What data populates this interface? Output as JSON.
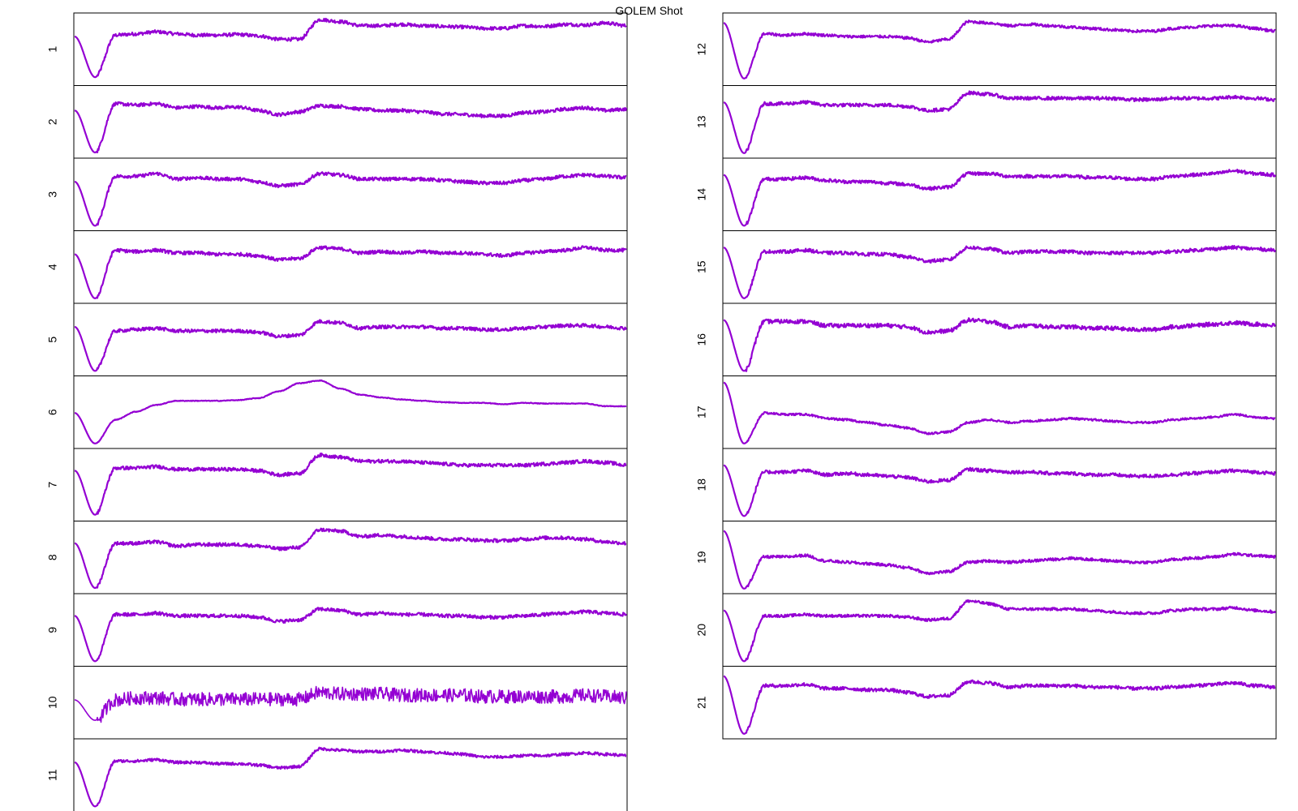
{
  "title": "GOLEM Shot",
  "colors": {
    "trace": "#9400d3",
    "frame": "#000000",
    "text": "#000000"
  },
  "chart_data": {
    "type": "line",
    "title": "GOLEM Shot",
    "columns": 2,
    "panels": [
      {
        "label": "1",
        "column": 1,
        "noise": 0.05,
        "values": [
          0.7,
          0.1,
          0.72,
          0.74,
          0.77,
          0.74,
          0.72,
          0.72,
          0.73,
          0.71,
          0.66,
          0.66,
          0.95,
          0.92,
          0.86,
          0.86,
          0.88,
          0.86,
          0.85,
          0.84,
          0.82,
          0.82,
          0.86,
          0.85,
          0.88,
          0.87,
          0.9,
          0.86
        ]
      },
      {
        "label": "2",
        "column": 1,
        "noise": 0.05,
        "values": [
          0.68,
          0.06,
          0.78,
          0.76,
          0.78,
          0.72,
          0.74,
          0.72,
          0.73,
          0.68,
          0.62,
          0.66,
          0.75,
          0.74,
          0.7,
          0.68,
          0.68,
          0.66,
          0.63,
          0.62,
          0.6,
          0.6,
          0.65,
          0.66,
          0.7,
          0.72,
          0.68,
          0.7
        ]
      },
      {
        "label": "3",
        "column": 1,
        "noise": 0.05,
        "values": [
          0.7,
          0.05,
          0.78,
          0.78,
          0.82,
          0.74,
          0.76,
          0.74,
          0.74,
          0.7,
          0.64,
          0.66,
          0.82,
          0.8,
          0.74,
          0.74,
          0.74,
          0.74,
          0.72,
          0.7,
          0.68,
          0.68,
          0.72,
          0.74,
          0.78,
          0.8,
          0.78,
          0.76
        ]
      },
      {
        "label": "4",
        "column": 1,
        "noise": 0.05,
        "values": [
          0.7,
          0.05,
          0.76,
          0.74,
          0.76,
          0.72,
          0.72,
          0.7,
          0.7,
          0.68,
          0.62,
          0.64,
          0.8,
          0.78,
          0.72,
          0.74,
          0.72,
          0.74,
          0.72,
          0.72,
          0.7,
          0.68,
          0.72,
          0.74,
          0.76,
          0.8,
          0.76,
          0.76
        ]
      },
      {
        "label": "5",
        "column": 1,
        "noise": 0.05,
        "values": [
          0.7,
          0.05,
          0.64,
          0.66,
          0.68,
          0.64,
          0.64,
          0.64,
          0.64,
          0.62,
          0.56,
          0.58,
          0.78,
          0.76,
          0.68,
          0.7,
          0.7,
          0.7,
          0.68,
          0.68,
          0.66,
          0.66,
          0.68,
          0.7,
          0.72,
          0.72,
          0.7,
          0.68
        ]
      },
      {
        "label": "6",
        "column": 1,
        "noise": 0.01,
        "values": [
          0.5,
          0.05,
          0.4,
          0.52,
          0.62,
          0.68,
          0.68,
          0.68,
          0.69,
          0.72,
          0.82,
          0.94,
          0.98,
          0.86,
          0.77,
          0.73,
          0.7,
          0.68,
          0.66,
          0.65,
          0.65,
          0.63,
          0.65,
          0.64,
          0.64,
          0.64,
          0.6,
          0.6
        ]
      },
      {
        "label": "7",
        "column": 1,
        "noise": 0.05,
        "values": [
          0.72,
          0.07,
          0.76,
          0.76,
          0.78,
          0.74,
          0.74,
          0.74,
          0.74,
          0.72,
          0.66,
          0.68,
          0.95,
          0.92,
          0.86,
          0.86,
          0.86,
          0.84,
          0.82,
          0.8,
          0.8,
          0.8,
          0.8,
          0.82,
          0.84,
          0.86,
          0.84,
          0.8
        ]
      },
      {
        "label": "8",
        "column": 1,
        "noise": 0.05,
        "values": [
          0.72,
          0.06,
          0.72,
          0.72,
          0.74,
          0.68,
          0.7,
          0.7,
          0.7,
          0.68,
          0.64,
          0.66,
          0.92,
          0.9,
          0.82,
          0.84,
          0.82,
          0.8,
          0.78,
          0.78,
          0.76,
          0.76,
          0.78,
          0.8,
          0.8,
          0.78,
          0.74,
          0.72
        ]
      },
      {
        "label": "9",
        "column": 1,
        "noise": 0.05,
        "values": [
          0.72,
          0.05,
          0.74,
          0.74,
          0.76,
          0.72,
          0.72,
          0.72,
          0.72,
          0.7,
          0.64,
          0.66,
          0.82,
          0.8,
          0.74,
          0.76,
          0.74,
          0.74,
          0.72,
          0.72,
          0.7,
          0.7,
          0.72,
          0.74,
          0.76,
          0.78,
          0.76,
          0.74
        ]
      },
      {
        "label": "10",
        "column": 1,
        "noise": 0.2,
        "values": [
          0.55,
          0.25,
          0.55,
          0.58,
          0.58,
          0.56,
          0.56,
          0.56,
          0.56,
          0.56,
          0.56,
          0.56,
          0.66,
          0.64,
          0.64,
          0.64,
          0.62,
          0.62,
          0.62,
          0.62,
          0.6,
          0.6,
          0.6,
          0.6,
          0.6,
          0.62,
          0.6,
          0.58
        ]
      },
      {
        "label": "11",
        "column": 1,
        "noise": 0.04,
        "values": [
          0.7,
          0.05,
          0.72,
          0.72,
          0.74,
          0.7,
          0.7,
          0.68,
          0.68,
          0.66,
          0.62,
          0.64,
          0.9,
          0.88,
          0.86,
          0.86,
          0.88,
          0.86,
          0.84,
          0.82,
          0.78,
          0.78,
          0.8,
          0.8,
          0.82,
          0.84,
          0.82,
          0.8
        ]
      },
      {
        "label": "12",
        "column": 2,
        "noise": 0.04,
        "values": [
          0.9,
          0.08,
          0.74,
          0.72,
          0.74,
          0.72,
          0.7,
          0.7,
          0.7,
          0.68,
          0.62,
          0.66,
          0.92,
          0.9,
          0.86,
          0.88,
          0.86,
          0.84,
          0.82,
          0.8,
          0.78,
          0.78,
          0.82,
          0.84,
          0.86,
          0.86,
          0.82,
          0.78
        ]
      },
      {
        "label": "13",
        "column": 2,
        "noise": 0.05,
        "values": [
          0.8,
          0.05,
          0.78,
          0.78,
          0.8,
          0.76,
          0.76,
          0.76,
          0.76,
          0.74,
          0.68,
          0.7,
          0.94,
          0.92,
          0.86,
          0.86,
          0.86,
          0.86,
          0.86,
          0.86,
          0.84,
          0.84,
          0.86,
          0.86,
          0.86,
          0.88,
          0.86,
          0.84
        ]
      },
      {
        "label": "14",
        "column": 2,
        "noise": 0.05,
        "values": [
          0.8,
          0.05,
          0.74,
          0.74,
          0.76,
          0.72,
          0.7,
          0.7,
          0.68,
          0.66,
          0.6,
          0.62,
          0.82,
          0.82,
          0.78,
          0.78,
          0.78,
          0.78,
          0.76,
          0.76,
          0.74,
          0.74,
          0.78,
          0.8,
          0.82,
          0.86,
          0.82,
          0.8
        ]
      },
      {
        "label": "15",
        "column": 2,
        "noise": 0.05,
        "values": [
          0.8,
          0.05,
          0.74,
          0.74,
          0.76,
          0.72,
          0.72,
          0.7,
          0.7,
          0.66,
          0.6,
          0.62,
          0.8,
          0.78,
          0.72,
          0.74,
          0.74,
          0.74,
          0.72,
          0.72,
          0.72,
          0.72,
          0.74,
          0.76,
          0.78,
          0.8,
          0.78,
          0.76
        ]
      },
      {
        "label": "16",
        "column": 2,
        "noise": 0.06,
        "values": [
          0.8,
          0.05,
          0.78,
          0.78,
          0.78,
          0.72,
          0.72,
          0.72,
          0.72,
          0.7,
          0.62,
          0.64,
          0.8,
          0.78,
          0.7,
          0.72,
          0.7,
          0.7,
          0.68,
          0.68,
          0.66,
          0.66,
          0.7,
          0.72,
          0.74,
          0.76,
          0.74,
          0.72
        ]
      },
      {
        "label": "17",
        "column": 2,
        "noise": 0.03,
        "values": [
          0.95,
          0.05,
          0.5,
          0.48,
          0.48,
          0.42,
          0.4,
          0.36,
          0.32,
          0.28,
          0.2,
          0.22,
          0.36,
          0.4,
          0.36,
          0.38,
          0.4,
          0.42,
          0.4,
          0.38,
          0.36,
          0.36,
          0.4,
          0.42,
          0.44,
          0.48,
          0.44,
          0.42
        ]
      },
      {
        "label": "18",
        "column": 2,
        "noise": 0.05,
        "values": [
          0.8,
          0.05,
          0.7,
          0.7,
          0.72,
          0.66,
          0.68,
          0.66,
          0.64,
          0.62,
          0.56,
          0.58,
          0.74,
          0.72,
          0.7,
          0.7,
          0.68,
          0.68,
          0.66,
          0.66,
          0.64,
          0.64,
          0.66,
          0.68,
          0.7,
          0.72,
          0.7,
          0.68
        ]
      },
      {
        "label": "19",
        "column": 2,
        "noise": 0.04,
        "values": [
          0.9,
          0.05,
          0.52,
          0.52,
          0.54,
          0.46,
          0.44,
          0.42,
          0.4,
          0.36,
          0.28,
          0.3,
          0.44,
          0.46,
          0.44,
          0.46,
          0.48,
          0.5,
          0.48,
          0.46,
          0.44,
          0.44,
          0.48,
          0.5,
          0.52,
          0.56,
          0.54,
          0.52
        ]
      },
      {
        "label": "20",
        "column": 2,
        "noise": 0.04,
        "values": [
          0.8,
          0.05,
          0.72,
          0.72,
          0.74,
          0.72,
          0.72,
          0.72,
          0.72,
          0.7,
          0.66,
          0.68,
          0.94,
          0.9,
          0.82,
          0.82,
          0.82,
          0.82,
          0.8,
          0.78,
          0.76,
          0.76,
          0.8,
          0.82,
          0.82,
          0.84,
          0.8,
          0.78
        ]
      },
      {
        "label": "21",
        "column": 2,
        "noise": 0.05,
        "values": [
          0.9,
          0.05,
          0.76,
          0.76,
          0.78,
          0.72,
          0.72,
          0.7,
          0.7,
          0.66,
          0.6,
          0.62,
          0.82,
          0.8,
          0.74,
          0.76,
          0.76,
          0.76,
          0.74,
          0.74,
          0.72,
          0.72,
          0.74,
          0.76,
          0.78,
          0.8,
          0.76,
          0.74
        ]
      }
    ]
  }
}
